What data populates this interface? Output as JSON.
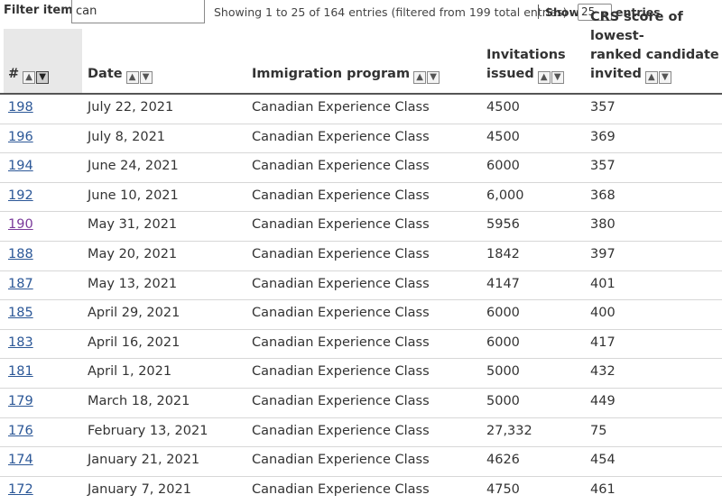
{
  "toolbar": {
    "filter_label": "Filter items",
    "filter_value": "can",
    "info": "Showing 1 to 25 of 164 entries (filtered from 199 total entries)",
    "show_label": "Show",
    "show_value": "25",
    "entries_label": "entries"
  },
  "table": {
    "headers": {
      "num": "#",
      "date": "Date",
      "program": "Immigration program",
      "invitations_1": "Invitations",
      "invitations_2": "issued",
      "crs_1": "CRS score of lowest-",
      "crs_2": "ranked candidate",
      "crs_3": "invited"
    },
    "rows": [
      {
        "num": "198",
        "date": "July 22, 2021",
        "program": "Canadian Experience Class",
        "invitations": "4500",
        "crs": "357"
      },
      {
        "num": "196",
        "date": "July 8, 2021",
        "program": "Canadian Experience Class",
        "invitations": "4500",
        "crs": "369"
      },
      {
        "num": "194",
        "date": "June 24, 2021",
        "program": "Canadian Experience Class",
        "invitations": "6000",
        "crs": "357"
      },
      {
        "num": "192",
        "date": "June 10, 2021",
        "program": "Canadian Experience Class",
        "invitations": "6,000",
        "crs": "368"
      },
      {
        "num": "190",
        "date": "May 31, 2021",
        "program": "Canadian Experience Class",
        "invitations": "5956",
        "crs": "380"
      },
      {
        "num": "188",
        "date": "May 20, 2021",
        "program": "Canadian Experience Class",
        "invitations": "1842",
        "crs": "397"
      },
      {
        "num": "187",
        "date": "May 13, 2021",
        "program": "Canadian Experience Class",
        "invitations": "4147",
        "crs": "401"
      },
      {
        "num": "185",
        "date": "April 29, 2021",
        "program": "Canadian Experience Class",
        "invitations": "6000",
        "crs": "400"
      },
      {
        "num": "183",
        "date": "April 16, 2021",
        "program": "Canadian Experience Class",
        "invitations": "6000",
        "crs": "417"
      },
      {
        "num": "181",
        "date": "April 1, 2021",
        "program": "Canadian Experience Class",
        "invitations": "5000",
        "crs": "432"
      },
      {
        "num": "179",
        "date": "March 18, 2021",
        "program": "Canadian Experience Class",
        "invitations": "5000",
        "crs": "449"
      },
      {
        "num": "176",
        "date": "February 13, 2021",
        "program": "Canadian Experience Class",
        "invitations": "27,332",
        "crs": "75"
      },
      {
        "num": "174",
        "date": "January 21, 2021",
        "program": "Canadian Experience Class",
        "invitations": "4626",
        "crs": "454"
      },
      {
        "num": "172",
        "date": "January 7, 2021",
        "program": "Canadian Experience Class",
        "invitations": "4750",
        "crs": "461"
      }
    ]
  }
}
